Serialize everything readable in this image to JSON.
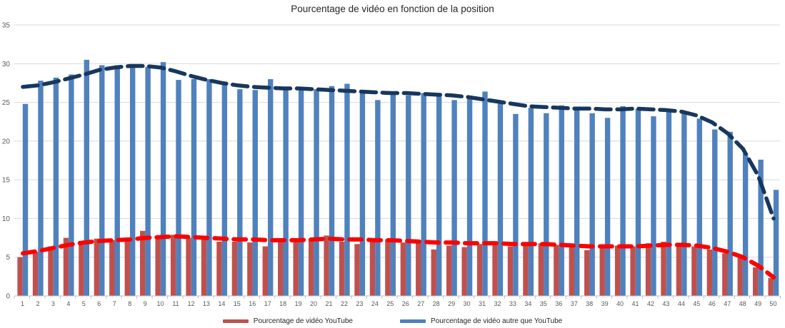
{
  "title": "Pourcentage de vidéo en fonction de la position",
  "colors": {
    "youtube_bar": "#C0504D",
    "other_bar": "#4F81BD",
    "youtube_trend": "#FE0000",
    "other_trend": "#17375E",
    "gridline": "#D9D9D9",
    "axis_line": "#BFBFBF",
    "tick_text": "#595959",
    "background": "#FFFFFF"
  },
  "axes": {
    "y_ticks": [
      0,
      5,
      10,
      15,
      20,
      25,
      30,
      35
    ],
    "x_labels": [
      "1",
      "2",
      "3",
      "4",
      "5",
      "6",
      "7",
      "8",
      "9",
      "10",
      "11",
      "12",
      "13",
      "14",
      "15",
      "16",
      "17",
      "18",
      "19",
      "20",
      "21",
      "22",
      "23",
      "24",
      "25",
      "26",
      "27",
      "28",
      "29",
      "30",
      "31",
      "32",
      "33",
      "34",
      "35",
      "36",
      "37",
      "38",
      "39",
      "40",
      "41",
      "42",
      "43",
      "44",
      "45",
      "46",
      "47",
      "48",
      "49",
      "50"
    ]
  },
  "legend": [
    {
      "label": "Pourcentage de vidéo YouTube",
      "color": "#C0504D"
    },
    {
      "label": "Pourcentage de vidéo autre que YouTube",
      "color": "#4F81BD"
    }
  ],
  "chart_data": {
    "type": "bar",
    "title": "Pourcentage de vidéo en fonction de la position",
    "xlabel": "",
    "ylabel": "",
    "ylim": [
      0,
      35
    ],
    "grid": true,
    "legend_position": "bottom",
    "categories": [
      1,
      2,
      3,
      4,
      5,
      6,
      7,
      8,
      9,
      10,
      11,
      12,
      13,
      14,
      15,
      16,
      17,
      18,
      19,
      20,
      21,
      22,
      23,
      24,
      25,
      26,
      27,
      28,
      29,
      30,
      31,
      32,
      33,
      34,
      35,
      36,
      37,
      38,
      39,
      40,
      41,
      42,
      43,
      44,
      45,
      46,
      47,
      48,
      49,
      50
    ],
    "series": [
      {
        "name": "Pourcentage de vidéo YouTube",
        "kind": "bar",
        "color": "#C0504D",
        "values": [
          5.0,
          5.7,
          6.4,
          7.5,
          7.1,
          7.4,
          7.2,
          7.1,
          8.4,
          7.6,
          7.9,
          7.5,
          7.4,
          7.0,
          7.0,
          6.9,
          6.4,
          7.0,
          7.2,
          7.4,
          7.8,
          7.0,
          6.7,
          7.2,
          7.3,
          6.9,
          6.8,
          6.0,
          6.5,
          6.3,
          6.7,
          6.8,
          6.4,
          6.7,
          6.8,
          6.6,
          6.3,
          5.9,
          6.4,
          6.5,
          6.4,
          6.8,
          7.0,
          6.6,
          6.4,
          6.0,
          5.5,
          5.2,
          3.7,
          2.3
        ]
      },
      {
        "name": "Pourcentage de vidéo autre que YouTube",
        "kind": "bar",
        "color": "#4F81BD",
        "values": [
          24.8,
          27.8,
          28.2,
          28.6,
          30.5,
          29.8,
          29.8,
          29.8,
          29.6,
          30.2,
          27.9,
          28.0,
          28.0,
          27.3,
          26.7,
          26.6,
          28.0,
          26.6,
          26.7,
          26.7,
          27.1,
          27.4,
          26.4,
          25.3,
          26.1,
          25.9,
          26.2,
          26.1,
          25.3,
          25.6,
          26.4,
          25.2,
          23.5,
          24.3,
          23.6,
          24.6,
          24.1,
          23.6,
          23.0,
          24.5,
          24.2,
          23.2,
          23.9,
          23.8,
          22.9,
          21.5,
          21.2,
          18.4,
          17.6,
          13.7
        ]
      },
      {
        "name": "Tendance - Pourcentage de vidéo autre que YouTube",
        "kind": "dashed-line",
        "color": "#17375E",
        "values": [
          27.0,
          27.2,
          27.6,
          28.1,
          28.6,
          29.2,
          29.5,
          29.7,
          29.7,
          29.5,
          29.0,
          28.4,
          27.9,
          27.5,
          27.2,
          27.0,
          26.9,
          26.8,
          26.8,
          26.7,
          26.6,
          26.5,
          26.4,
          26.3,
          26.2,
          26.2,
          26.1,
          26.0,
          25.9,
          25.7,
          25.4,
          25.1,
          24.8,
          24.5,
          24.4,
          24.3,
          24.2,
          24.2,
          24.1,
          24.1,
          24.2,
          24.1,
          24.0,
          23.8,
          23.3,
          22.4,
          21.0,
          19.0,
          15.5,
          10.0
        ]
      },
      {
        "name": "Tendance - Pourcentage de vidéo YouTube",
        "kind": "dashed-line",
        "color": "#FE0000",
        "values": [
          5.5,
          5.8,
          6.2,
          6.6,
          6.9,
          7.1,
          7.2,
          7.3,
          7.5,
          7.6,
          7.7,
          7.6,
          7.5,
          7.4,
          7.3,
          7.3,
          7.2,
          7.2,
          7.2,
          7.3,
          7.4,
          7.3,
          7.3,
          7.2,
          7.2,
          7.1,
          7.0,
          6.9,
          6.9,
          6.8,
          6.8,
          6.8,
          6.7,
          6.7,
          6.7,
          6.6,
          6.5,
          6.4,
          6.4,
          6.4,
          6.4,
          6.5,
          6.6,
          6.6,
          6.5,
          6.2,
          5.7,
          5.0,
          3.9,
          2.4
        ]
      }
    ]
  }
}
